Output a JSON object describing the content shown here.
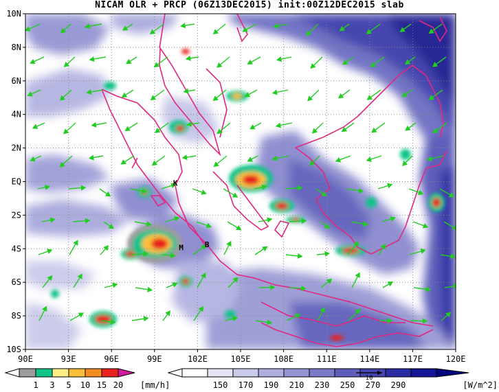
{
  "title": "NICAM OLR + PRCP (06Z13DEC2015) init:00Z12DEC2015 slab",
  "map": {
    "lon_range": [
      90,
      120
    ],
    "lat_range": [
      -10,
      10
    ],
    "lon_ticks": [
      "90E",
      "93E",
      "96E",
      "99E",
      "102E",
      "105E",
      "108E",
      "111E",
      "114E",
      "117E",
      "120E"
    ],
    "lat_ticks": [
      "10N",
      "8N",
      "6N",
      "4N",
      "2N",
      "EQ",
      "2S",
      "4S",
      "6S",
      "8S",
      "10S"
    ],
    "place_labels": [
      {
        "text": "K",
        "lon": 100.3,
        "lat": -0.25
      },
      {
        "text": "M",
        "lon": 100.7,
        "lat": -4.1
      },
      {
        "text": "B",
        "lon": 102.5,
        "lat": -3.9
      }
    ],
    "colors": {
      "coast": "#e0287f",
      "wind": "#22cc22",
      "grid": "#888888"
    }
  },
  "precip_colorbar": {
    "labels": [
      "1",
      "3",
      "5",
      "10",
      "15",
      "20"
    ],
    "unit": "[mm/h]",
    "colors": [
      "#9c9c9c",
      "#10c48a",
      "#ffee88",
      "#fbbf3a",
      "#f78c1e",
      "#e8231f",
      "#d21a9c"
    ]
  },
  "olr_colorbar": {
    "labels": [
      "150",
      "170",
      "190",
      "210",
      "230",
      "250",
      "270",
      "290"
    ],
    "unit": "[W/m^2]",
    "vector_ref": "10",
    "colors": [
      "#ffffff",
      "#e4e4f5",
      "#c9c9ea",
      "#aeaedf",
      "#9494d3",
      "#7a7ac7",
      "#5f5fbb",
      "#4545ae",
      "#2a2aa2",
      "#141496",
      "#06067f"
    ]
  }
}
